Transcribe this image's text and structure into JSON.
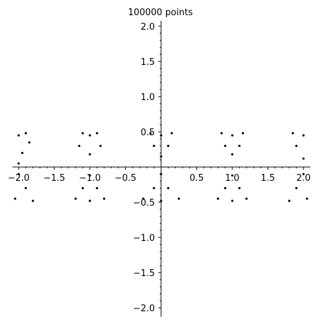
{
  "chart_data": {
    "type": "scatter",
    "title": "100000 points",
    "xlabel": "",
    "ylabel": "",
    "xlim": [
      -2.1,
      2.1
    ],
    "ylim": [
      -2.1,
      2.1
    ],
    "grid": false,
    "x_ticks": [
      -2.0,
      -1.5,
      -1.0,
      -0.5,
      0.5,
      1.0,
      1.5,
      2.0
    ],
    "x_tick_labels": [
      "−2.0",
      "−1.5",
      "−1.0",
      "−0.5",
      "0.5",
      "1.0",
      "1.5",
      "2.0"
    ],
    "y_ticks": [
      2.0,
      1.5,
      1.0,
      0.5,
      -0.5,
      -1.0,
      -1.5,
      -2.0
    ],
    "y_tick_labels": [
      "2.0",
      "1.5",
      "1.0",
      "0.5",
      "−0.5",
      "−1.0",
      "−1.5",
      "−2.0"
    ],
    "series": [
      {
        "color": "#000000",
        "marker": "point",
        "points": [
          [
            -2.0,
            0.45
          ],
          [
            -1.9,
            0.48
          ],
          [
            -1.85,
            0.35
          ],
          [
            -1.95,
            0.2
          ],
          [
            -2.0,
            0.05
          ],
          [
            -1.0,
            0.45
          ],
          [
            -1.1,
            0.48
          ],
          [
            -0.9,
            0.48
          ],
          [
            -1.15,
            0.3
          ],
          [
            -0.85,
            0.3
          ],
          [
            -1.0,
            0.18
          ],
          [
            0.0,
            0.45
          ],
          [
            -0.15,
            0.48
          ],
          [
            0.15,
            0.48
          ],
          [
            -0.1,
            0.3
          ],
          [
            0.1,
            0.3
          ],
          [
            0.0,
            0.15
          ],
          [
            1.0,
            0.45
          ],
          [
            0.85,
            0.48
          ],
          [
            1.15,
            0.48
          ],
          [
            0.9,
            0.3
          ],
          [
            1.1,
            0.3
          ],
          [
            1.0,
            0.18
          ],
          [
            2.0,
            0.45
          ],
          [
            1.85,
            0.48
          ],
          [
            1.9,
            0.3
          ],
          [
            2.0,
            0.12
          ],
          [
            -2.0,
            -0.1
          ],
          [
            -1.9,
            -0.3
          ],
          [
            -2.05,
            -0.45
          ],
          [
            -1.8,
            -0.48
          ],
          [
            -1.0,
            -0.12
          ],
          [
            -1.1,
            -0.3
          ],
          [
            -0.9,
            -0.3
          ],
          [
            -1.2,
            -0.45
          ],
          [
            -0.8,
            -0.45
          ],
          [
            -1.0,
            -0.48
          ],
          [
            0.0,
            -0.1
          ],
          [
            -0.1,
            -0.3
          ],
          [
            0.1,
            -0.3
          ],
          [
            -0.25,
            -0.45
          ],
          [
            0.25,
            -0.45
          ],
          [
            0.0,
            -0.48
          ],
          [
            1.0,
            -0.12
          ],
          [
            0.9,
            -0.3
          ],
          [
            1.1,
            -0.3
          ],
          [
            0.8,
            -0.45
          ],
          [
            1.2,
            -0.45
          ],
          [
            1.0,
            -0.48
          ],
          [
            2.0,
            -0.1
          ],
          [
            1.9,
            -0.3
          ],
          [
            2.05,
            -0.45
          ],
          [
            1.8,
            -0.48
          ]
        ]
      }
    ]
  }
}
